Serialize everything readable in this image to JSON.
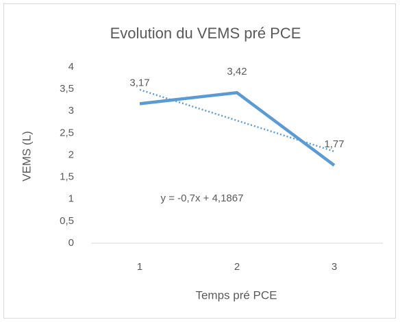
{
  "chart_data": {
    "type": "line",
    "title": "Evolution du VEMS pré PCE",
    "x_label": "Temps pré PCE",
    "y_label": "VEMS (L)",
    "x": [
      1,
      2,
      3
    ],
    "xlim": [
      0.5,
      3.5
    ],
    "xticks": [
      1,
      2,
      3
    ],
    "series": [
      {
        "name": "VEMS",
        "color": "#5b9bd5",
        "values": [
          3.17,
          3.42,
          1.77
        ],
        "value_labels": [
          "3,17",
          "3,42",
          "1,77"
        ]
      }
    ],
    "trendline": {
      "slope": -0.7,
      "intercept": 4.1867,
      "label": "y = -0,7x + 4,1867"
    },
    "ylim": [
      0,
      4
    ],
    "yticks": [
      0,
      {
        "value": 0.5,
        "label": "0,5"
      },
      1,
      {
        "value": 1.5,
        "label": "1,5"
      },
      2,
      {
        "value": 2.5,
        "label": "2,5"
      },
      3,
      {
        "value": 3.5,
        "label": "3,5"
      },
      4
    ],
    "grid": false
  }
}
